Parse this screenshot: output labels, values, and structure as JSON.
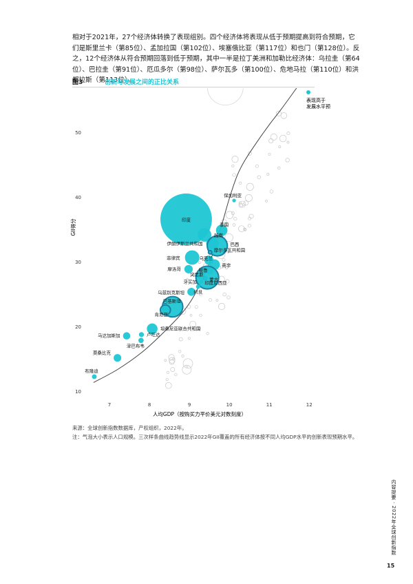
{
  "intro_text": "相对于2021年，27个经济体转换了表现组别。四个经济体将表现从低于预期提高到符合预期，它们是斯里兰卡（第85位）、孟加拉国（第102位）、埃塞俄比亚（第117位）和也门（第128位）。反之，12个经济体从符合预期回落到低于预期，其中一半是拉丁美洲和加勒比经济体：乌拉圭（第64位）、巴拉圭（第91位）、厄瓜多尔（第98位）、萨尔瓦多（第100位）、危地马拉（第110位）和洪都拉斯（第113位）。",
  "figure": {
    "number": "图3",
    "title": "创新与发展之间的正比关系"
  },
  "colors": {
    "accent": "#1ec6d4",
    "dark_bubble": "#1f7fa0",
    "grey_bubble": "#c8c8c8",
    "curve": "#444444"
  },
  "chart_data": {
    "type": "scatter",
    "xlabel": "人均GDP（按购买力平价美元对数刻度）",
    "ylabel": "GII得分",
    "xlim": [
      6.5,
      12.1
    ],
    "ylim": [
      9,
      56
    ],
    "x_ticks": [
      7,
      8,
      9,
      10,
      11,
      12
    ],
    "y_ticks": [
      10,
      20,
      30,
      40,
      50
    ],
    "legend": "表现高于发展水平预期",
    "legend_placement": "top-right",
    "bubble_size_meaning": "population",
    "trend_curve": [
      [
        6.6,
        11.4
      ],
      [
        7.2,
        13.4
      ],
      [
        7.8,
        16.0
      ],
      [
        8.3,
        18.8
      ],
      [
        8.8,
        22.0
      ],
      [
        9.1,
        24.6
      ],
      [
        9.4,
        28.4
      ],
      [
        9.6,
        31.5
      ],
      [
        9.8,
        35.5
      ],
      [
        10.0,
        39.8
      ],
      [
        10.2,
        43.4
      ],
      [
        10.4,
        45.8
      ],
      [
        10.7,
        48.6
      ],
      [
        11.0,
        51.2
      ],
      [
        11.3,
        53.6
      ],
      [
        11.7,
        57.0
      ]
    ],
    "series": [
      {
        "name": "表现高于发展水平预期",
        "points": [
          {
            "label": "印度",
            "x": 8.92,
            "y": 36.6,
            "pop": 1400
          },
          {
            "label": "保加利亚",
            "x": 10.12,
            "y": 39.5,
            "pop": 7
          },
          {
            "label": "泰国",
            "x": 9.81,
            "y": 34.9,
            "pop": 70
          },
          {
            "label": "越南",
            "x": 9.38,
            "y": 34.2,
            "pop": 97
          },
          {
            "label": "伊朗伊斯兰共和国",
            "x": 9.58,
            "y": 32.9,
            "pop": 85
          },
          {
            "label": "巴西",
            "x": 9.7,
            "y": 32.5,
            "pop": 214
          },
          {
            "label": "摩尔多瓦共和国",
            "x": 9.52,
            "y": 31.5,
            "pop": 3
          },
          {
            "label": "菲律宾",
            "x": 9.07,
            "y": 30.7,
            "pop": 110
          },
          {
            "label": "乌克兰",
            "x": 9.49,
            "y": 30.3,
            "pop": 44
          },
          {
            "label": "南非",
            "x": 9.63,
            "y": 29.6,
            "pop": 60
          },
          {
            "label": "秘鲁",
            "x": 9.51,
            "y": 28.7,
            "pop": 33
          },
          {
            "label": "摩洛哥",
            "x": 8.98,
            "y": 28.9,
            "pop": 37
          },
          {
            "label": "突尼斯",
            "x": 9.26,
            "y": 27.8,
            "pop": 12
          },
          {
            "label": "蒙古",
            "x": 9.39,
            "y": 27.5,
            "pop": 3
          },
          {
            "label": "牙买加",
            "x": 9.3,
            "y": 27.0,
            "pop": 3
          },
          {
            "label": "印度尼西亚",
            "x": 9.45,
            "y": 27.6,
            "pop": 273
          },
          {
            "label": "约旦",
            "x": 9.22,
            "y": 26.2,
            "pop": 10
          },
          {
            "label": "乌兹别克斯坦",
            "x": 9.05,
            "y": 25.4,
            "pop": 34
          },
          {
            "label": "巴基斯坦",
            "x": 8.58,
            "y": 23.1,
            "pop": 220
          },
          {
            "label": "肯尼亚",
            "x": 8.4,
            "y": 22.6,
            "pop": 54
          },
          {
            "label": "坦桑尼亚联合共和国",
            "x": 8.07,
            "y": 19.7,
            "pop": 60
          },
          {
            "label": "卢旺达",
            "x": 7.8,
            "y": 18.8,
            "pop": 13
          },
          {
            "label": "马达加斯加",
            "x": 7.43,
            "y": 18.6,
            "pop": 28
          },
          {
            "label": "津巴布韦",
            "x": 7.79,
            "y": 17.9,
            "pop": 15
          },
          {
            "label": "莫桑比克",
            "x": 7.2,
            "y": 15.2,
            "pop": 31
          },
          {
            "label": "布隆迪",
            "x": 6.62,
            "y": 12.3,
            "pop": 12
          }
        ]
      }
    ]
  },
  "source": "来源：全球创新指数数据库，产权组织，2022年。",
  "note": "注：气泡大小表示人口规模。三次样条曲线趋势线显示2022年GII覆盖的所有经济体按不同人均GDP水平的创新表现预期水平。",
  "sidebar_text": "内容提要 · 2022年全球创新指数",
  "page_number": "15"
}
